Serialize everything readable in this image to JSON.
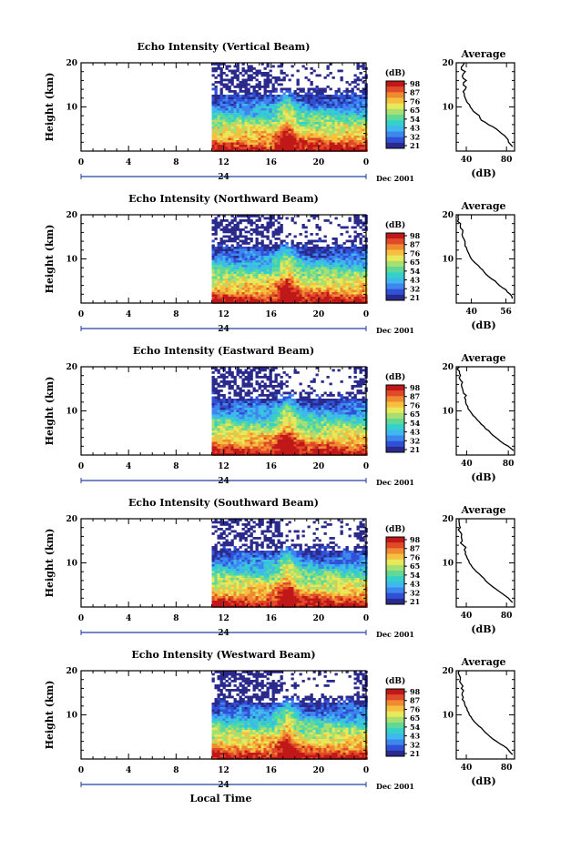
{
  "chart_data": [
    {
      "type": "heatmap",
      "title": "Echo Intensity (Vertical Beam)",
      "ylabel": "Height (km)",
      "y_ticks": [
        "20",
        "10"
      ],
      "x_ticks": [
        "0",
        "4",
        "8",
        "12",
        "16",
        "20",
        "0"
      ],
      "date_label": "24",
      "month_label": "Dec 2001",
      "ylim": [
        0,
        20
      ],
      "xlim": [
        0,
        24
      ],
      "data_start_hour": 11,
      "colorbar": {
        "unit": "(dB)",
        "ticks": [
          "98",
          "87",
          "76",
          "65",
          "54",
          "43",
          "32",
          "21"
        ]
      },
      "profile": {
        "title": "Average",
        "xlabel": "(dB)",
        "x_ticks": [
          "40",
          "80"
        ],
        "y_ticks": [
          "20",
          "10"
        ],
        "xlim": [
          30,
          88
        ],
        "points": [
          [
            86,
            1
          ],
          [
            82,
            2
          ],
          [
            80,
            3
          ],
          [
            75,
            4
          ],
          [
            70,
            5
          ],
          [
            62,
            6
          ],
          [
            55,
            7
          ],
          [
            53,
            8
          ],
          [
            47,
            9
          ],
          [
            44,
            10
          ],
          [
            41,
            11
          ],
          [
            39,
            12
          ],
          [
            38,
            13
          ],
          [
            39,
            14
          ],
          [
            37,
            15
          ],
          [
            40,
            16
          ],
          [
            36,
            17
          ],
          [
            39,
            18
          ],
          [
            35,
            19
          ],
          [
            38,
            20
          ]
        ]
      }
    },
    {
      "type": "heatmap",
      "title": "Echo Intensity (Northward Beam)",
      "ylabel": "Height (km)",
      "y_ticks": [
        "20",
        "10"
      ],
      "x_ticks": [
        "0",
        "4",
        "8",
        "12",
        "16",
        "20",
        "0"
      ],
      "date_label": "24",
      "month_label": "Dec 2001",
      "ylim": [
        0,
        20
      ],
      "xlim": [
        0,
        24
      ],
      "data_start_hour": 11,
      "colorbar": {
        "unit": "(dB)",
        "ticks": [
          "98",
          "87",
          "76",
          "65",
          "54",
          "43",
          "32",
          "21"
        ]
      },
      "profile": {
        "title": "Average",
        "xlabel": "(dB)",
        "x_ticks": [
          "40",
          "56"
        ],
        "y_ticks": [
          "20",
          "10"
        ],
        "xlim": [
          33,
          60
        ],
        "points": [
          [
            59,
            1
          ],
          [
            58,
            2
          ],
          [
            56,
            3
          ],
          [
            53,
            4
          ],
          [
            51,
            5
          ],
          [
            48,
            6
          ],
          [
            46,
            7
          ],
          [
            44,
            8
          ],
          [
            42,
            9
          ],
          [
            40,
            10
          ],
          [
            39,
            11
          ],
          [
            38,
            12
          ],
          [
            37,
            13
          ],
          [
            37,
            14
          ],
          [
            36,
            15
          ],
          [
            36,
            16
          ],
          [
            35,
            17
          ],
          [
            35,
            18
          ],
          [
            34,
            19
          ],
          [
            34,
            20
          ]
        ]
      }
    },
    {
      "type": "heatmap",
      "title": "Echo Intensity (Eastward Beam)",
      "ylabel": "Height (km)",
      "y_ticks": [
        "20",
        "10"
      ],
      "x_ticks": [
        "0",
        "4",
        "8",
        "12",
        "16",
        "20",
        "0"
      ],
      "date_label": "24",
      "month_label": "Dec 2001",
      "ylim": [
        0,
        20
      ],
      "xlim": [
        0,
        24
      ],
      "data_start_hour": 11,
      "colorbar": {
        "unit": "(dB)",
        "ticks": [
          "98",
          "87",
          "76",
          "65",
          "54",
          "43",
          "32",
          "21"
        ]
      },
      "profile": {
        "title": "Average",
        "xlabel": "(dB)",
        "x_ticks": [
          "40",
          "80"
        ],
        "y_ticks": [
          "20",
          "10"
        ],
        "xlim": [
          30,
          86
        ],
        "points": [
          [
            85,
            1
          ],
          [
            80,
            2
          ],
          [
            73,
            3
          ],
          [
            68,
            4
          ],
          [
            63,
            5
          ],
          [
            58,
            6
          ],
          [
            54,
            7
          ],
          [
            50,
            8
          ],
          [
            46,
            9
          ],
          [
            43,
            10
          ],
          [
            41,
            11
          ],
          [
            39,
            12
          ],
          [
            38,
            13
          ],
          [
            37,
            14
          ],
          [
            36,
            15
          ],
          [
            35,
            16
          ],
          [
            34,
            17
          ],
          [
            34,
            18
          ],
          [
            33,
            19
          ],
          [
            33,
            20
          ]
        ]
      }
    },
    {
      "type": "heatmap",
      "title": "Echo Intensity (Southward Beam)",
      "ylabel": "Height (km)",
      "y_ticks": [
        "20",
        "10"
      ],
      "x_ticks": [
        "0",
        "4",
        "8",
        "12",
        "16",
        "20",
        "0"
      ],
      "date_label": "24",
      "month_label": "Dec 2001",
      "ylim": [
        0,
        20
      ],
      "xlim": [
        0,
        24
      ],
      "data_start_hour": 11,
      "colorbar": {
        "unit": "(dB)",
        "ticks": [
          "98",
          "87",
          "76",
          "65",
          "54",
          "43",
          "32",
          "21"
        ]
      },
      "profile": {
        "title": "Average",
        "xlabel": "(dB)",
        "x_ticks": [
          "40",
          "80"
        ],
        "y_ticks": [
          "20",
          "10"
        ],
        "xlim": [
          30,
          88
        ],
        "points": [
          [
            86,
            1
          ],
          [
            82,
            2
          ],
          [
            76,
            3
          ],
          [
            70,
            4
          ],
          [
            64,
            5
          ],
          [
            59,
            6
          ],
          [
            55,
            7
          ],
          [
            50,
            8
          ],
          [
            46,
            9
          ],
          [
            43,
            10
          ],
          [
            41,
            11
          ],
          [
            39,
            12
          ],
          [
            38,
            13
          ],
          [
            37,
            14
          ],
          [
            36,
            15
          ],
          [
            35,
            16
          ],
          [
            34,
            17
          ],
          [
            34,
            18
          ],
          [
            33,
            19
          ],
          [
            33,
            20
          ]
        ]
      }
    },
    {
      "type": "heatmap",
      "title": "Echo Intensity (Westward Beam)",
      "ylabel": "Height (km)",
      "y_ticks": [
        "20",
        "10"
      ],
      "x_ticks": [
        "0",
        "4",
        "8",
        "12",
        "16",
        "20",
        "0"
      ],
      "date_label": "24",
      "month_label": "Dec 2001",
      "xlabel": "Local Time",
      "ylim": [
        0,
        20
      ],
      "xlim": [
        0,
        24
      ],
      "data_start_hour": 11,
      "colorbar": {
        "unit": "(dB)",
        "ticks": [
          "98",
          "87",
          "76",
          "65",
          "54",
          "43",
          "32",
          "21"
        ]
      },
      "profile": {
        "title": "Average",
        "xlabel": "(dB)",
        "x_ticks": [
          "40",
          "80"
        ],
        "y_ticks": [
          "20",
          "10"
        ],
        "xlim": [
          30,
          88
        ],
        "points": [
          [
            86,
            1
          ],
          [
            82,
            2
          ],
          [
            77,
            3
          ],
          [
            70,
            4
          ],
          [
            64,
            5
          ],
          [
            59,
            6
          ],
          [
            55,
            7
          ],
          [
            50,
            8
          ],
          [
            46,
            9
          ],
          [
            43,
            10
          ],
          [
            41,
            11
          ],
          [
            39,
            12
          ],
          [
            38,
            13
          ],
          [
            37,
            14
          ],
          [
            36,
            15
          ],
          [
            35,
            16
          ],
          [
            35,
            17
          ],
          [
            34,
            18
          ],
          [
            33,
            19
          ],
          [
            33,
            20
          ]
        ]
      }
    }
  ],
  "colormap": [
    "#2a2a8c",
    "#3050d8",
    "#3d86ee",
    "#3fb8f0",
    "#35d0c8",
    "#5fd898",
    "#a8e070",
    "#e8e85a",
    "#f5c040",
    "#f08a30",
    "#e04a28",
    "#c01818"
  ]
}
